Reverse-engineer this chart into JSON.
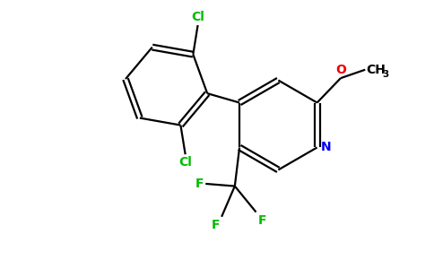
{
  "background_color": "#ffffff",
  "bond_color": "#000000",
  "cl_color": "#00bb00",
  "n_color": "#0000ee",
  "o_color": "#ee0000",
  "f_color": "#00bb00",
  "figsize": [
    4.84,
    3.0
  ],
  "dpi": 100,
  "lw": 1.6,
  "off": 0.055,
  "xlim": [
    0,
    9
  ],
  "ylim": [
    0,
    5.6
  ]
}
